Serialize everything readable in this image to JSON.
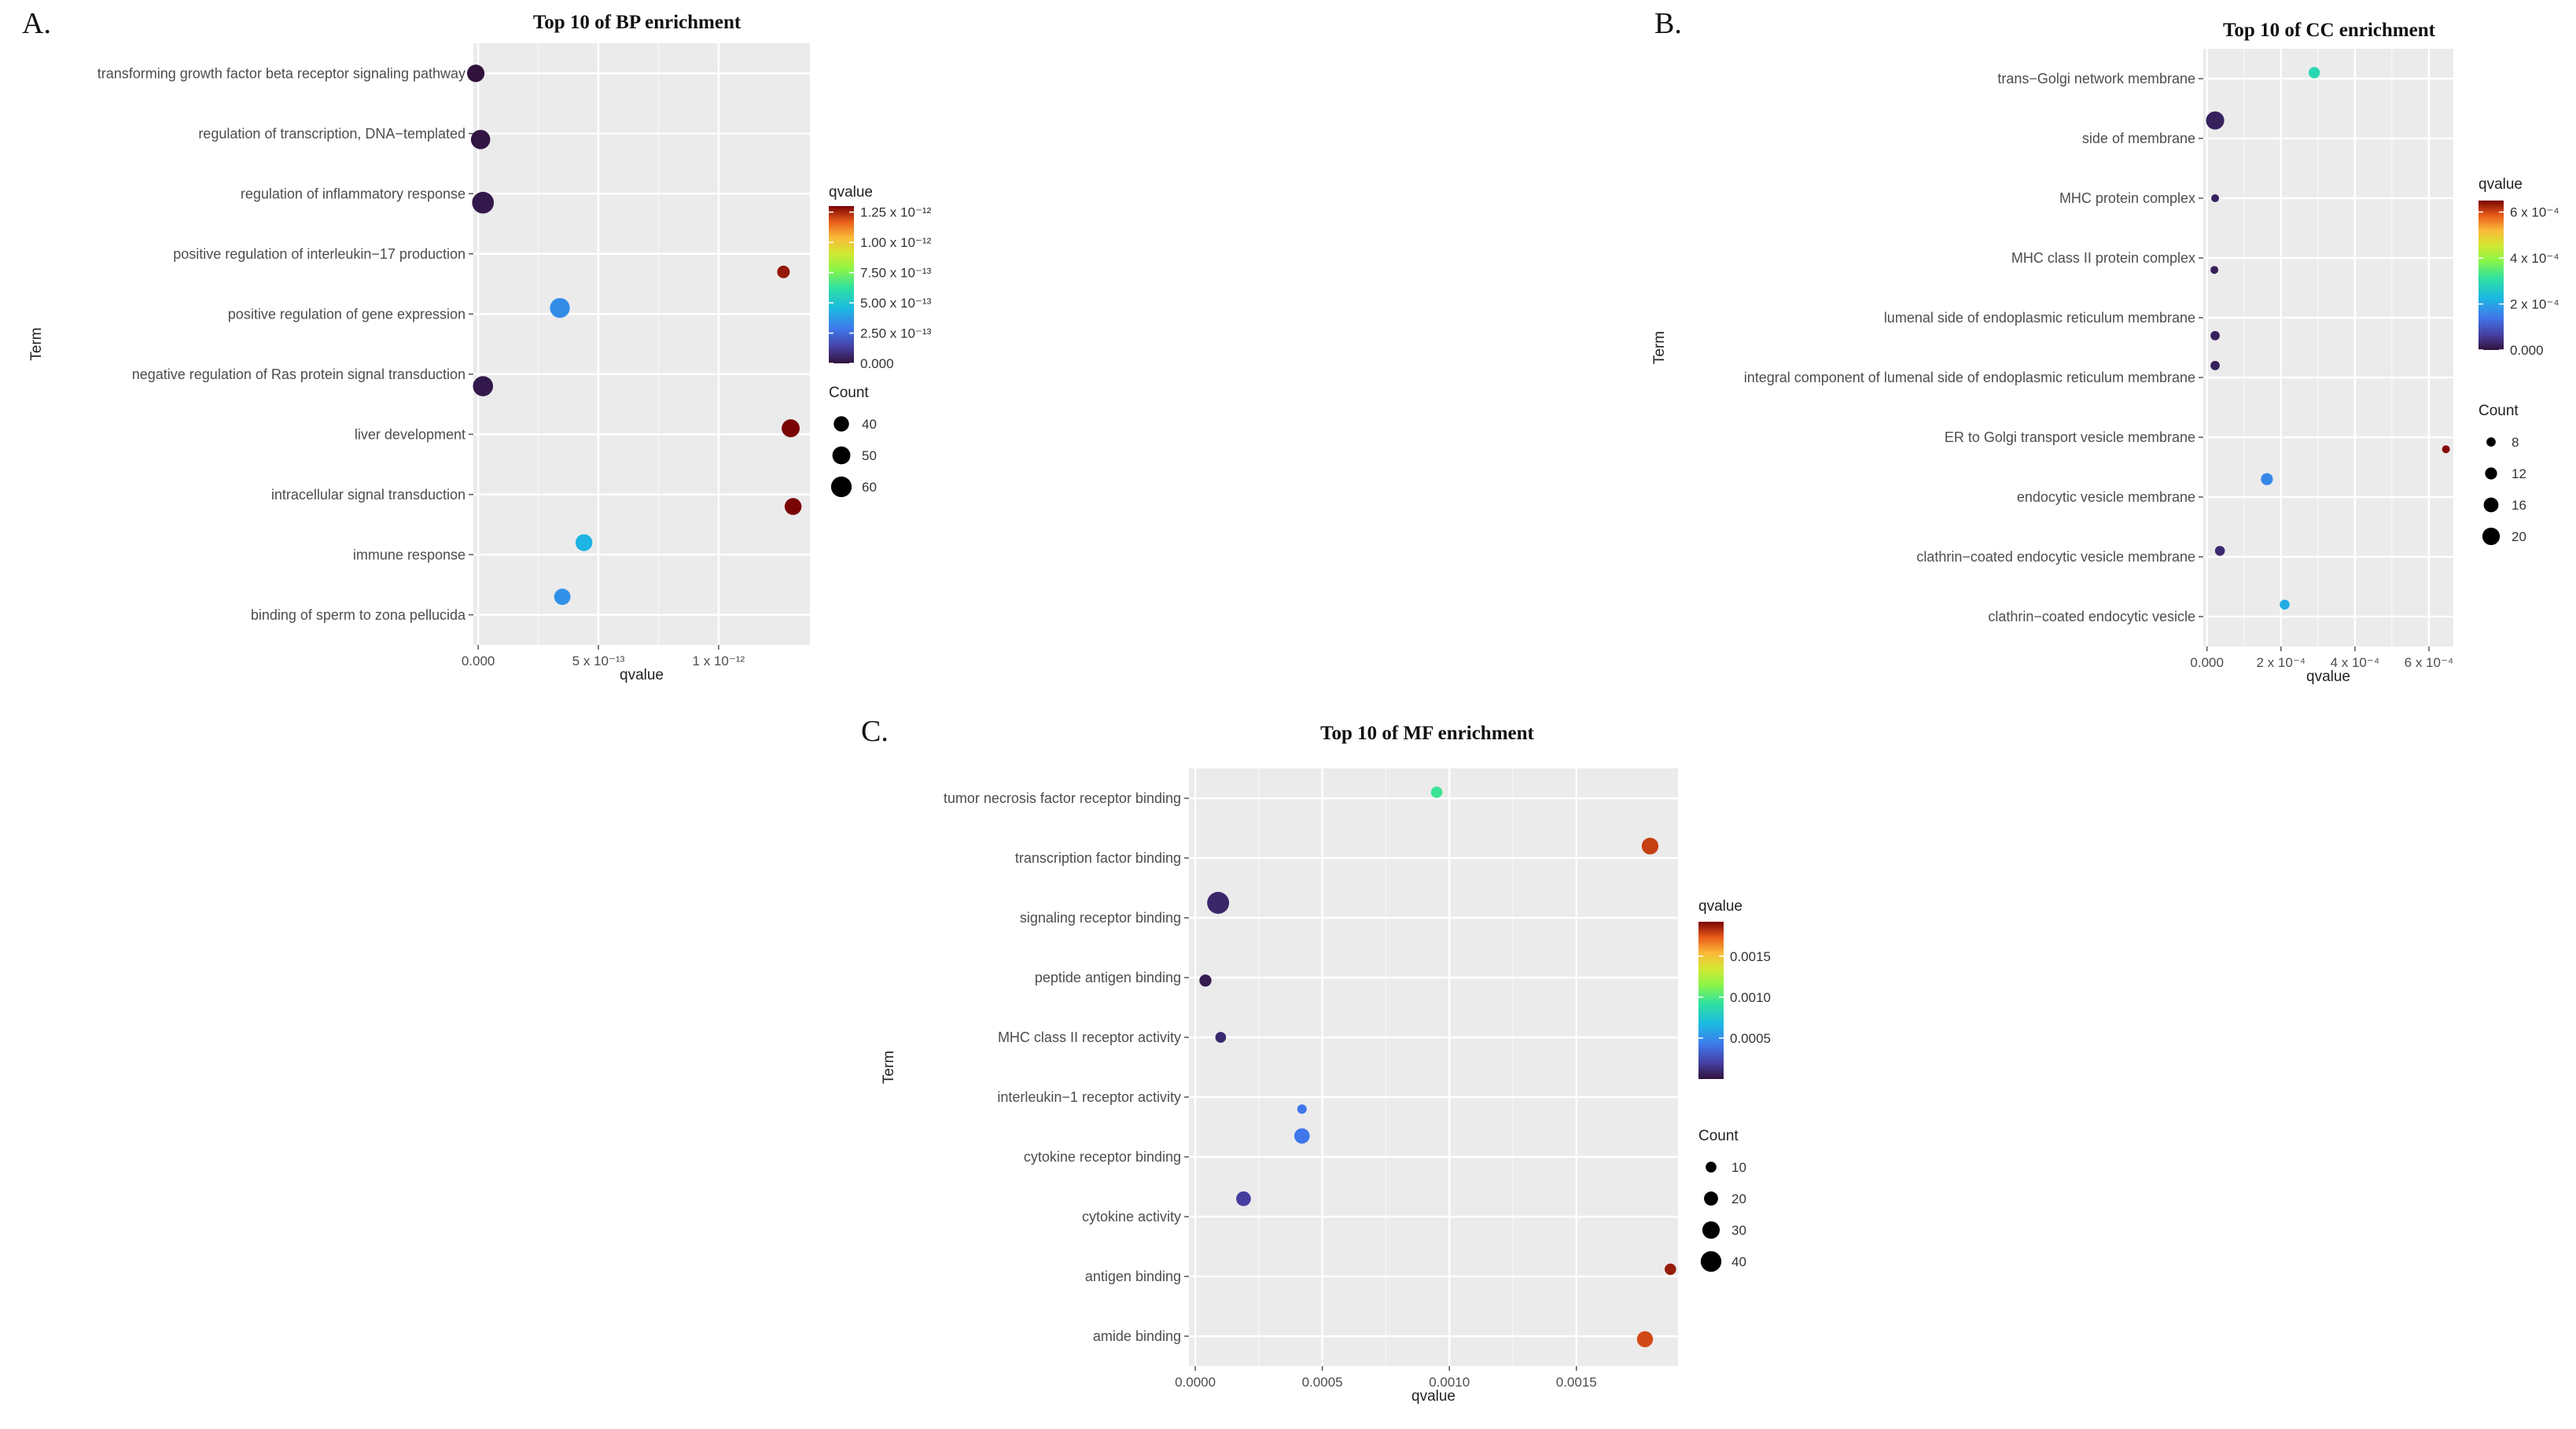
{
  "chart_data": [
    {
      "type": "scatter",
      "panel_letter": "A.",
      "title": "Top 10 of BP enrichment",
      "xlabel": "qvalue",
      "ylabel": "Term",
      "xlim": [
        -2e-14,
        1.38e-12
      ],
      "x_ticks": [
        {
          "value": 0,
          "label": "0.000"
        },
        {
          "value": 5e-13,
          "label": "5 x 10⁻¹³"
        },
        {
          "value": 1e-12,
          "label": "1 x 10⁻¹²"
        }
      ],
      "color_range": [
        0,
        1.3e-12
      ],
      "color_ticks": [
        {
          "value": 1.25e-12,
          "label": "1.25 x 10⁻¹²"
        },
        {
          "value": 1e-12,
          "label": "1.00 x 10⁻¹²"
        },
        {
          "value": 7.5e-13,
          "label": "7.50 x 10⁻¹³"
        },
        {
          "value": 5e-13,
          "label": "5.00 x 10⁻¹³"
        },
        {
          "value": 2.5e-13,
          "label": "2.50 x 10⁻¹³"
        },
        {
          "value": 0,
          "label": "0.000"
        }
      ],
      "size_range": [
        30,
        65
      ],
      "size_legend_title": "Count",
      "size_legend": [
        40,
        50,
        60
      ],
      "color_legend_title": "qvalue",
      "terms": [
        "transforming growth factor beta receptor signaling pathway",
        "regulation of transcription, DNA−templated",
        "regulation of inflammatory response",
        "positive regulation of interleukin−17 production",
        "positive regulation of gene expression",
        "negative regulation of Ras protein signal transduction",
        "liver development",
        "intracellular signal transduction",
        "immune response",
        "binding of sperm to zona pellucida"
      ],
      "points": [
        {
          "term": "transforming growth factor beta receptor signaling pathway",
          "qvalue": -1e-14,
          "count": 48,
          "y_offset": 0
        },
        {
          "term": "regulation of transcription, DNA−templated",
          "qvalue": 1e-14,
          "count": 55,
          "y_offset": 0.1
        },
        {
          "term": "regulation of inflammatory response",
          "qvalue": 2e-14,
          "count": 64,
          "y_offset": 0.15
        },
        {
          "term": "positive regulation of interleukin−17 production",
          "qvalue": 1.27e-12,
          "count": 30,
          "y_offset": 0.3
        },
        {
          "term": "positive regulation of gene expression",
          "qvalue": 3.4e-13,
          "count": 57,
          "y_offset": -0.1
        },
        {
          "term": "negative regulation of Ras protein signal transduction",
          "qvalue": 2e-14,
          "count": 58,
          "y_offset": 0.2
        },
        {
          "term": "liver development",
          "qvalue": 1.3e-12,
          "count": 50,
          "y_offset": -0.1
        },
        {
          "term": "intracellular signal transduction",
          "qvalue": 1.31e-12,
          "count": 46,
          "y_offset": 0.2
        },
        {
          "term": "immune response",
          "qvalue": 4.4e-13,
          "count": 46,
          "y_offset": -0.2
        },
        {
          "term": "binding of sperm to zona pellucida",
          "qvalue": 3.5e-13,
          "count": 44,
          "y_offset": -0.3
        }
      ]
    },
    {
      "type": "scatter",
      "panel_letter": "B.",
      "title": "Top 10 of CC enrichment",
      "xlabel": "qvalue",
      "ylabel": "Term",
      "xlim": [
        -1e-05,
        0.000666
      ],
      "x_ticks": [
        {
          "value": 0,
          "label": "0.000"
        },
        {
          "value": 0.0002,
          "label": "2 x 10⁻⁴"
        },
        {
          "value": 0.0004,
          "label": "4 x 10⁻⁴"
        },
        {
          "value": 0.0006,
          "label": "6 x 10⁻⁴"
        }
      ],
      "color_range": [
        0,
        0.00065
      ],
      "color_ticks": [
        {
          "value": 0.0006,
          "label": "6 x 10⁻⁴"
        },
        {
          "value": 0.0004,
          "label": "4 x 10⁻⁴"
        },
        {
          "value": 0.0002,
          "label": "2 x 10⁻⁴"
        },
        {
          "value": 0,
          "label": "0.000"
        }
      ],
      "size_range": [
        6,
        22
      ],
      "size_legend_title": "Count",
      "size_legend": [
        8,
        12,
        16,
        20
      ],
      "color_legend_title": "qvalue",
      "terms": [
        "trans−Golgi network membrane",
        "side of membrane",
        "MHC protein complex",
        "MHC class II protein complex",
        "lumenal side of endoplasmic reticulum membrane",
        "integral component of lumenal side of endoplasmic reticulum membrane",
        "ER to Golgi transport vesicle membrane",
        "endocytic vesicle membrane",
        "clathrin−coated endocytic vesicle membrane",
        "clathrin−coated endocytic vesicle"
      ],
      "points": [
        {
          "term": "trans−Golgi network membrane",
          "qvalue": 0.00029,
          "count": 11,
          "y_offset": -0.1
        },
        {
          "term": "side of membrane",
          "qvalue": 2.2e-05,
          "count": 21,
          "y_offset": -0.3
        },
        {
          "term": "MHC protein complex",
          "qvalue": 2.2e-05,
          "count": 6,
          "y_offset": 0
        },
        {
          "term": "MHC class II protein complex",
          "qvalue": 2e-05,
          "count": 6,
          "y_offset": 0.2
        },
        {
          "term": "lumenal side of endoplasmic reticulum membrane",
          "qvalue": 2.2e-05,
          "count": 8,
          "y_offset": 0.3
        },
        {
          "term": "integral component of lumenal side of endoplasmic reticulum membrane",
          "qvalue": 2.2e-05,
          "count": 8,
          "y_offset": -0.2
        },
        {
          "term": "ER to Golgi transport vesicle membrane",
          "qvalue": 0.000646,
          "count": 6,
          "y_offset": 0.2
        },
        {
          "term": "endocytic vesicle membrane",
          "qvalue": 0.000162,
          "count": 12,
          "y_offset": -0.3
        },
        {
          "term": "clathrin−coated endocytic vesicle membrane",
          "qvalue": 3.5e-05,
          "count": 9,
          "y_offset": -0.1
        },
        {
          "term": "clathrin−coated endocytic vesicle",
          "qvalue": 0.00021,
          "count": 9,
          "y_offset": -0.2
        }
      ]
    },
    {
      "type": "scatter",
      "panel_letter": "C.",
      "title": "Top 10 of MF enrichment",
      "xlabel": "qvalue",
      "ylabel": "Term",
      "xlim": [
        -2.5e-05,
        0.0019
      ],
      "x_ticks": [
        {
          "value": 0,
          "label": "0.0000"
        },
        {
          "value": 0.0005,
          "label": "0.0005"
        },
        {
          "value": 0.001,
          "label": "0.0010"
        },
        {
          "value": 0.0015,
          "label": "0.0015"
        }
      ],
      "color_range": [
        0,
        0.00192
      ],
      "color_ticks": [
        {
          "value": 0.0015,
          "label": "0.0015"
        },
        {
          "value": 0.001,
          "label": "0.0010"
        },
        {
          "value": 0.0005,
          "label": "0.0005"
        }
      ],
      "size_range": [
        6,
        44
      ],
      "size_legend_title": "Count",
      "size_legend": [
        10,
        20,
        30,
        40
      ],
      "color_legend_title": "qvalue",
      "terms": [
        "tumor necrosis factor receptor binding",
        "transcription factor binding",
        "signaling receptor binding",
        "peptide antigen binding",
        "MHC class II receptor activity",
        "interleukin−1 receptor activity",
        "cytokine receptor binding",
        "cytokine activity",
        "antigen binding",
        "amide binding"
      ],
      "points": [
        {
          "term": "tumor necrosis factor receptor binding",
          "qvalue": 0.00095,
          "count": 12,
          "y_offset": -0.1
        },
        {
          "term": "transcription factor binding",
          "qvalue": 0.00179,
          "count": 28,
          "y_offset": -0.2
        },
        {
          "term": "signaling receptor binding",
          "qvalue": 9e-05,
          "count": 44,
          "y_offset": -0.25
        },
        {
          "term": "peptide antigen binding",
          "qvalue": 4e-05,
          "count": 14,
          "y_offset": 0.05
        },
        {
          "term": "MHC class II receptor activity",
          "qvalue": 0.0001,
          "count": 10,
          "y_offset": 0
        },
        {
          "term": "interleukin−1 receptor activity",
          "qvalue": 0.00042,
          "count": 6,
          "y_offset": 0.2
        },
        {
          "term": "cytokine receptor binding",
          "qvalue": 0.00042,
          "count": 24,
          "y_offset": -0.35
        },
        {
          "term": "cytokine activity",
          "qvalue": 0.00019,
          "count": 22,
          "y_offset": -0.3
        },
        {
          "term": "antigen binding",
          "qvalue": 0.00187,
          "count": 12,
          "y_offset": -0.12
        },
        {
          "term": "amide binding",
          "qvalue": 0.00177,
          "count": 26,
          "y_offset": 0.05
        }
      ]
    }
  ]
}
